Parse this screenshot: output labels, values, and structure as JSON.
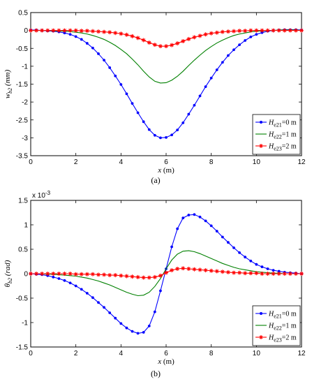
{
  "chart_data": [
    {
      "type": "line",
      "panel_label": "(a)",
      "xlabel": "x (m)",
      "ylabel": {
        "base": "w",
        "sub": "b2",
        "unit": " (mm)"
      },
      "xlim": [
        0,
        12
      ],
      "ylim": [
        -3.5,
        0.5
      ],
      "xticks": [
        "0",
        "2",
        "4",
        "6",
        "8",
        "10",
        "12"
      ],
      "yticks": [
        "0.5",
        "0",
        "-0.5",
        "-1",
        "-1.5",
        "-2",
        "-2.5",
        "-3",
        "-3.5"
      ],
      "legend_position": "bottom-right",
      "series": [
        {
          "name": {
            "base": "H",
            "sub": "e21",
            "rest": "=0 m"
          },
          "color": "#0000ff",
          "marker": "dot",
          "x": [
            0,
            0.25,
            0.5,
            0.75,
            1,
            1.25,
            1.5,
            1.75,
            2,
            2.25,
            2.5,
            2.75,
            3,
            3.25,
            3.5,
            3.75,
            4,
            4.25,
            4.5,
            4.75,
            5,
            5.25,
            5.5,
            5.75,
            6,
            6.25,
            6.5,
            6.75,
            7,
            7.25,
            7.5,
            7.75,
            8,
            8.25,
            8.5,
            8.75,
            9,
            9.25,
            9.5,
            9.75,
            10,
            10.25,
            10.5,
            10.75,
            11,
            11.25,
            11.5,
            11.75,
            12
          ],
          "y": [
            0.01,
            0.01,
            0.0,
            -0.01,
            -0.02,
            -0.04,
            -0.07,
            -0.11,
            -0.17,
            -0.25,
            -0.36,
            -0.49,
            -0.65,
            -0.83,
            -1.04,
            -1.27,
            -1.51,
            -1.77,
            -2.04,
            -2.3,
            -2.55,
            -2.77,
            -2.93,
            -3.0,
            -2.99,
            -2.92,
            -2.78,
            -2.58,
            -2.34,
            -2.09,
            -1.83,
            -1.57,
            -1.33,
            -1.1,
            -0.89,
            -0.7,
            -0.54,
            -0.4,
            -0.28,
            -0.18,
            -0.11,
            -0.06,
            -0.02,
            0.0,
            0.01,
            0.02,
            0.02,
            0.02,
            0.01
          ]
        },
        {
          "name": {
            "base": "H",
            "sub": "e22",
            "rest": "=1 m"
          },
          "color": "#008000",
          "marker": "none",
          "x": [
            0,
            0.25,
            0.5,
            0.75,
            1,
            1.25,
            1.5,
            1.75,
            2,
            2.25,
            2.5,
            2.75,
            3,
            3.25,
            3.5,
            3.75,
            4,
            4.25,
            4.5,
            4.75,
            5,
            5.25,
            5.5,
            5.75,
            6,
            6.25,
            6.5,
            6.75,
            7,
            7.25,
            7.5,
            7.75,
            8,
            8.25,
            8.5,
            8.75,
            9,
            9.25,
            9.5,
            9.75,
            10,
            10.25,
            10.5,
            10.75,
            11,
            11.25,
            11.5,
            11.75,
            12
          ],
          "y": [
            0.0,
            0.0,
            0.0,
            0.0,
            -0.01,
            -0.01,
            -0.02,
            -0.03,
            -0.05,
            -0.07,
            -0.1,
            -0.14,
            -0.19,
            -0.25,
            -0.33,
            -0.42,
            -0.53,
            -0.65,
            -0.8,
            -0.96,
            -1.14,
            -1.3,
            -1.42,
            -1.47,
            -1.46,
            -1.39,
            -1.28,
            -1.14,
            -0.98,
            -0.83,
            -0.69,
            -0.56,
            -0.45,
            -0.35,
            -0.27,
            -0.2,
            -0.14,
            -0.1,
            -0.07,
            -0.04,
            -0.02,
            -0.01,
            0.0,
            0.0,
            0.01,
            0.01,
            0.01,
            0.01,
            0.0
          ]
        },
        {
          "name": {
            "base": "H",
            "sub": "e23",
            "rest": "=2 m"
          },
          "color": "#ff0000",
          "marker": "star",
          "x": [
            0,
            0.25,
            0.5,
            0.75,
            1,
            1.25,
            1.5,
            1.75,
            2,
            2.25,
            2.5,
            2.75,
            3,
            3.25,
            3.5,
            3.75,
            4,
            4.25,
            4.5,
            4.75,
            5,
            5.25,
            5.5,
            5.75,
            6,
            6.25,
            6.5,
            6.75,
            7,
            7.25,
            7.5,
            7.75,
            8,
            8.25,
            8.5,
            8.75,
            9,
            9.25,
            9.5,
            9.75,
            10,
            10.25,
            10.5,
            10.75,
            11,
            11.25,
            11.5,
            11.75,
            12
          ],
          "y": [
            0.0,
            0.0,
            0.0,
            0.0,
            0.0,
            0.0,
            0.0,
            0.0,
            0.0,
            -0.01,
            -0.01,
            -0.02,
            -0.03,
            -0.04,
            -0.05,
            -0.07,
            -0.09,
            -0.12,
            -0.16,
            -0.21,
            -0.27,
            -0.34,
            -0.4,
            -0.44,
            -0.44,
            -0.41,
            -0.36,
            -0.3,
            -0.24,
            -0.19,
            -0.15,
            -0.11,
            -0.08,
            -0.06,
            -0.04,
            -0.03,
            -0.02,
            -0.01,
            -0.01,
            0.0,
            0.0,
            0.0,
            0.0,
            0.0,
            0.0,
            0.0,
            0.0,
            0.0,
            0.0
          ]
        }
      ]
    },
    {
      "type": "line",
      "panel_label": "(b)",
      "xlabel": "x (m)",
      "ylabel": {
        "base": "θ",
        "sub": "b2",
        "unit": " (rad)"
      },
      "exponent_label": "x 10",
      "exponent_power": "-3",
      "xlim": [
        0,
        12
      ],
      "ylim": [
        -1.5,
        1.5
      ],
      "xticks": [
        "0",
        "2",
        "4",
        "6",
        "8",
        "10",
        "12"
      ],
      "yticks": [
        "1.5",
        "1",
        "0.5",
        "0",
        "-0.5",
        "-1",
        "-1.5"
      ],
      "legend_position": "bottom-right",
      "series": [
        {
          "name": {
            "base": "H",
            "sub": "e21",
            "rest": "=0 m"
          },
          "color": "#0000ff",
          "marker": "dot",
          "x": [
            0,
            0.25,
            0.5,
            0.75,
            1,
            1.25,
            1.5,
            1.75,
            2,
            2.25,
            2.5,
            2.75,
            3,
            3.25,
            3.5,
            3.75,
            4,
            4.25,
            4.5,
            4.75,
            5,
            5.25,
            5.5,
            5.75,
            6,
            6.25,
            6.5,
            6.75,
            7,
            7.25,
            7.5,
            7.75,
            8,
            8.25,
            8.5,
            8.75,
            9,
            9.25,
            9.5,
            9.75,
            10,
            10.25,
            10.5,
            10.75,
            11,
            11.25,
            11.5,
            11.75,
            12
          ],
          "y": [
            0.0,
            -0.01,
            -0.02,
            -0.04,
            -0.07,
            -0.1,
            -0.14,
            -0.19,
            -0.25,
            -0.32,
            -0.4,
            -0.49,
            -0.59,
            -0.69,
            -0.8,
            -0.91,
            -1.02,
            -1.11,
            -1.18,
            -1.22,
            -1.2,
            -1.07,
            -0.78,
            -0.35,
            0.1,
            0.55,
            0.92,
            1.14,
            1.2,
            1.21,
            1.16,
            1.08,
            0.98,
            0.87,
            0.75,
            0.64,
            0.53,
            0.43,
            0.34,
            0.26,
            0.19,
            0.14,
            0.1,
            0.07,
            0.05,
            0.03,
            0.02,
            0.01,
            0.0
          ]
        },
        {
          "name": {
            "base": "H",
            "sub": "e22",
            "rest": "=1 m"
          },
          "color": "#008000",
          "marker": "none",
          "x": [
            0,
            0.25,
            0.5,
            0.75,
            1,
            1.25,
            1.5,
            1.75,
            2,
            2.25,
            2.5,
            2.75,
            3,
            3.25,
            3.5,
            3.75,
            4,
            4.25,
            4.5,
            4.75,
            5,
            5.25,
            5.5,
            5.75,
            6,
            6.25,
            6.5,
            6.75,
            7,
            7.25,
            7.5,
            7.75,
            8,
            8.25,
            8.5,
            8.75,
            9,
            9.25,
            9.5,
            9.75,
            10,
            10.25,
            10.5,
            10.75,
            11,
            11.25,
            11.5,
            11.75,
            12
          ],
          "y": [
            0.0,
            0.0,
            0.0,
            -0.01,
            -0.01,
            -0.02,
            -0.03,
            -0.04,
            -0.05,
            -0.07,
            -0.09,
            -0.12,
            -0.15,
            -0.19,
            -0.23,
            -0.28,
            -0.33,
            -0.38,
            -0.42,
            -0.45,
            -0.44,
            -0.38,
            -0.26,
            -0.1,
            0.1,
            0.28,
            0.4,
            0.46,
            0.47,
            0.45,
            0.41,
            0.36,
            0.31,
            0.26,
            0.21,
            0.17,
            0.13,
            0.1,
            0.08,
            0.06,
            0.04,
            0.03,
            0.02,
            0.01,
            0.01,
            0.0,
            0.0,
            0.0,
            0.0
          ]
        },
        {
          "name": {
            "base": "H",
            "sub": "e23",
            "rest": "=2 m"
          },
          "color": "#ff0000",
          "marker": "star",
          "x": [
            0,
            0.25,
            0.5,
            0.75,
            1,
            1.25,
            1.5,
            1.75,
            2,
            2.25,
            2.5,
            2.75,
            3,
            3.25,
            3.5,
            3.75,
            4,
            4.25,
            4.5,
            4.75,
            5,
            5.25,
            5.5,
            5.75,
            6,
            6.25,
            6.5,
            6.75,
            7,
            7.25,
            7.5,
            7.75,
            8,
            8.25,
            8.5,
            8.75,
            9,
            9.25,
            9.5,
            9.75,
            10,
            10.25,
            10.5,
            10.75,
            11,
            11.25,
            11.5,
            11.75,
            12
          ],
          "y": [
            0.0,
            0.0,
            0.0,
            0.0,
            0.0,
            0.0,
            0.0,
            0.0,
            -0.01,
            -0.01,
            -0.01,
            -0.01,
            -0.02,
            -0.02,
            -0.03,
            -0.03,
            -0.04,
            -0.05,
            -0.06,
            -0.07,
            -0.08,
            -0.08,
            -0.07,
            -0.04,
            0.02,
            0.07,
            0.1,
            0.11,
            0.1,
            0.09,
            0.08,
            0.07,
            0.06,
            0.05,
            0.04,
            0.03,
            0.02,
            0.02,
            0.01,
            0.01,
            0.01,
            0.0,
            0.0,
            0.0,
            0.0,
            0.0,
            0.0,
            0.0,
            0.0
          ]
        }
      ]
    }
  ]
}
